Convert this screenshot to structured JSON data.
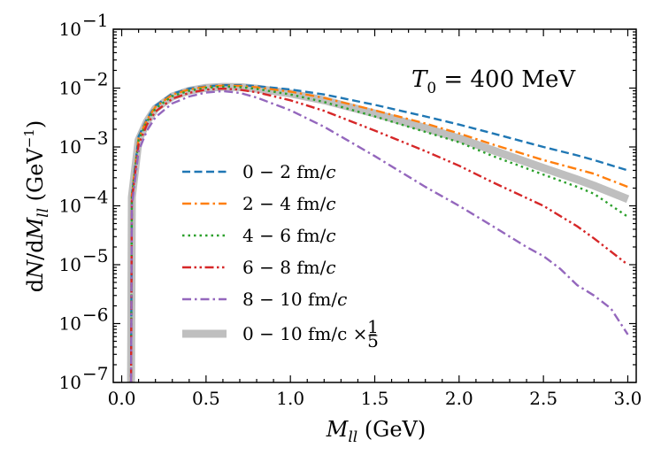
{
  "chart_data": {
    "type": "line",
    "xlabel": "M_ll (GeV)",
    "xlabel_main": "M",
    "xlabel_sub": "ll",
    "xlabel_unit": " (GeV)",
    "ylabel": "dN/dM_ll (GeV^-1)",
    "xlim": [
      -0.05,
      3.05
    ],
    "ylim_log10": [
      -7,
      -1
    ],
    "yscale": "log",
    "x_ticks": [
      0.0,
      0.5,
      1.0,
      1.5,
      2.0,
      2.5,
      3.0
    ],
    "x_tick_labels": [
      "0.0",
      "0.5",
      "1.0",
      "1.5",
      "2.0",
      "2.5",
      "3.0"
    ],
    "y_tick_exponents": [
      -7,
      -6,
      -5,
      -4,
      -3,
      -2,
      -1
    ],
    "y_tick_labels": [
      "10",
      "10",
      "10",
      "10",
      "10",
      "10",
      "10"
    ],
    "y_tick_superscripts": [
      "-7",
      "-6",
      "-5",
      "-4",
      "-3",
      "-2",
      "-1"
    ],
    "annotation": "T0 = 400 MeV",
    "annotation_main": "T",
    "annotation_sub": "0",
    "annotation_rest": " = 400 MeV",
    "legend_position": "lower-left",
    "series": [
      {
        "name": "0 - 2 fm/c",
        "color": "#1f77b4",
        "dash": "dashed",
        "x": [
          0.06,
          0.1,
          0.15,
          0.2,
          0.3,
          0.4,
          0.5,
          0.6,
          0.7,
          0.8,
          1.0,
          1.2,
          1.5,
          1.8,
          2.0,
          2.2,
          2.5,
          2.7,
          2.8,
          3.0
        ],
        "y": [
          0.00015,
          0.0015,
          0.003,
          0.005,
          0.008,
          0.0098,
          0.0107,
          0.0112,
          0.0112,
          0.0108,
          0.0095,
          0.0078,
          0.0052,
          0.0033,
          0.0024,
          0.0017,
          0.001,
          0.00072,
          0.0006,
          0.0004
        ]
      },
      {
        "name": "2 - 4 fm/c",
        "color": "#ff7f0e",
        "dash": "dashdot",
        "x": [
          0.06,
          0.1,
          0.15,
          0.2,
          0.3,
          0.4,
          0.5,
          0.6,
          0.7,
          0.8,
          1.0,
          1.2,
          1.5,
          1.8,
          2.0,
          2.2,
          2.5,
          2.7,
          2.8,
          3.0
        ],
        "y": [
          0.00015,
          0.0014,
          0.0029,
          0.0048,
          0.0077,
          0.0095,
          0.0105,
          0.011,
          0.0109,
          0.0103,
          0.0087,
          0.0068,
          0.0042,
          0.0025,
          0.0017,
          0.0011,
          0.0006,
          0.00042,
          0.00035,
          0.00021
        ]
      },
      {
        "name": "4 - 6 fm/c",
        "color": "#2ca02c",
        "dash": "dotted",
        "x": [
          0.06,
          0.1,
          0.15,
          0.2,
          0.3,
          0.4,
          0.5,
          0.6,
          0.7,
          0.8,
          1.0,
          1.2,
          1.5,
          1.8,
          2.0,
          2.2,
          2.5,
          2.7,
          2.8,
          3.0
        ],
        "y": [
          0.00014,
          0.0013,
          0.0027,
          0.0045,
          0.0073,
          0.009,
          0.0101,
          0.0106,
          0.0104,
          0.0097,
          0.0078,
          0.0058,
          0.0033,
          0.0018,
          0.0012,
          0.0007,
          0.00034,
          0.00021,
          0.00016,
          6.5e-05
        ]
      },
      {
        "name": "6 - 8 fm/c",
        "color": "#d62728",
        "dash": "dashdotdot",
        "x": [
          0.06,
          0.1,
          0.15,
          0.2,
          0.3,
          0.4,
          0.5,
          0.6,
          0.7,
          0.8,
          1.0,
          1.2,
          1.5,
          1.8,
          2.0,
          2.2,
          2.5,
          2.7,
          2.8,
          3.0
        ],
        "y": [
          0.00012,
          0.0011,
          0.0024,
          0.004,
          0.0066,
          0.0083,
          0.0094,
          0.0098,
          0.0094,
          0.0085,
          0.0062,
          0.0041,
          0.0019,
          0.00085,
          0.00048,
          0.00025,
          0.0001,
          4.5e-05,
          2.8e-05,
          1e-05
        ]
      },
      {
        "name": "8 - 10 fm/c",
        "color": "#9467bd",
        "dash": "dashdot",
        "x": [
          0.06,
          0.1,
          0.15,
          0.2,
          0.3,
          0.4,
          0.5,
          0.6,
          0.7,
          0.8,
          1.0,
          1.2,
          1.5,
          1.8,
          2.0,
          2.2,
          2.4,
          2.5,
          2.6,
          2.7,
          2.8,
          2.9,
          3.0
        ],
        "y": [
          0.0001,
          0.00085,
          0.0019,
          0.0032,
          0.0055,
          0.0072,
          0.0084,
          0.0089,
          0.0083,
          0.0069,
          0.0042,
          0.0022,
          0.0007,
          0.00021,
          0.0001,
          4.5e-05,
          2e-05,
          1.4e-05,
          8.5e-06,
          4.5e-06,
          3e-06,
          1.8e-06,
          6.5e-07
        ]
      },
      {
        "name": "0 - 10 fm/c × 1/5",
        "color": "#bfbfbf",
        "dash": "solid",
        "x": [
          0.06,
          0.1,
          0.15,
          0.2,
          0.3,
          0.4,
          0.5,
          0.6,
          0.7,
          0.8,
          1.0,
          1.2,
          1.5,
          1.8,
          2.0,
          2.2,
          2.5,
          2.7,
          2.8,
          3.0
        ],
        "y": [
          0.00014,
          0.0013,
          0.0027,
          0.0045,
          0.0072,
          0.009,
          0.0101,
          0.0105,
          0.0104,
          0.0098,
          0.0081,
          0.0062,
          0.0037,
          0.0021,
          0.0014,
          0.00088,
          0.00044,
          0.00028,
          0.00022,
          0.00013
        ]
      }
    ],
    "legend_labels": [
      {
        "main": "0 − 2 fm/",
        "italic": "c"
      },
      {
        "main": "2 − 4 fm/",
        "italic": "c"
      },
      {
        "main": "4 − 6 fm/",
        "italic": "c"
      },
      {
        "main": "6 − 8 fm/",
        "italic": "c"
      },
      {
        "main": "8 − 10 fm/",
        "italic": "c"
      },
      {
        "main": "0 − 10 fm/c × ",
        "frac_num": "1",
        "frac_den": "5"
      }
    ]
  }
}
